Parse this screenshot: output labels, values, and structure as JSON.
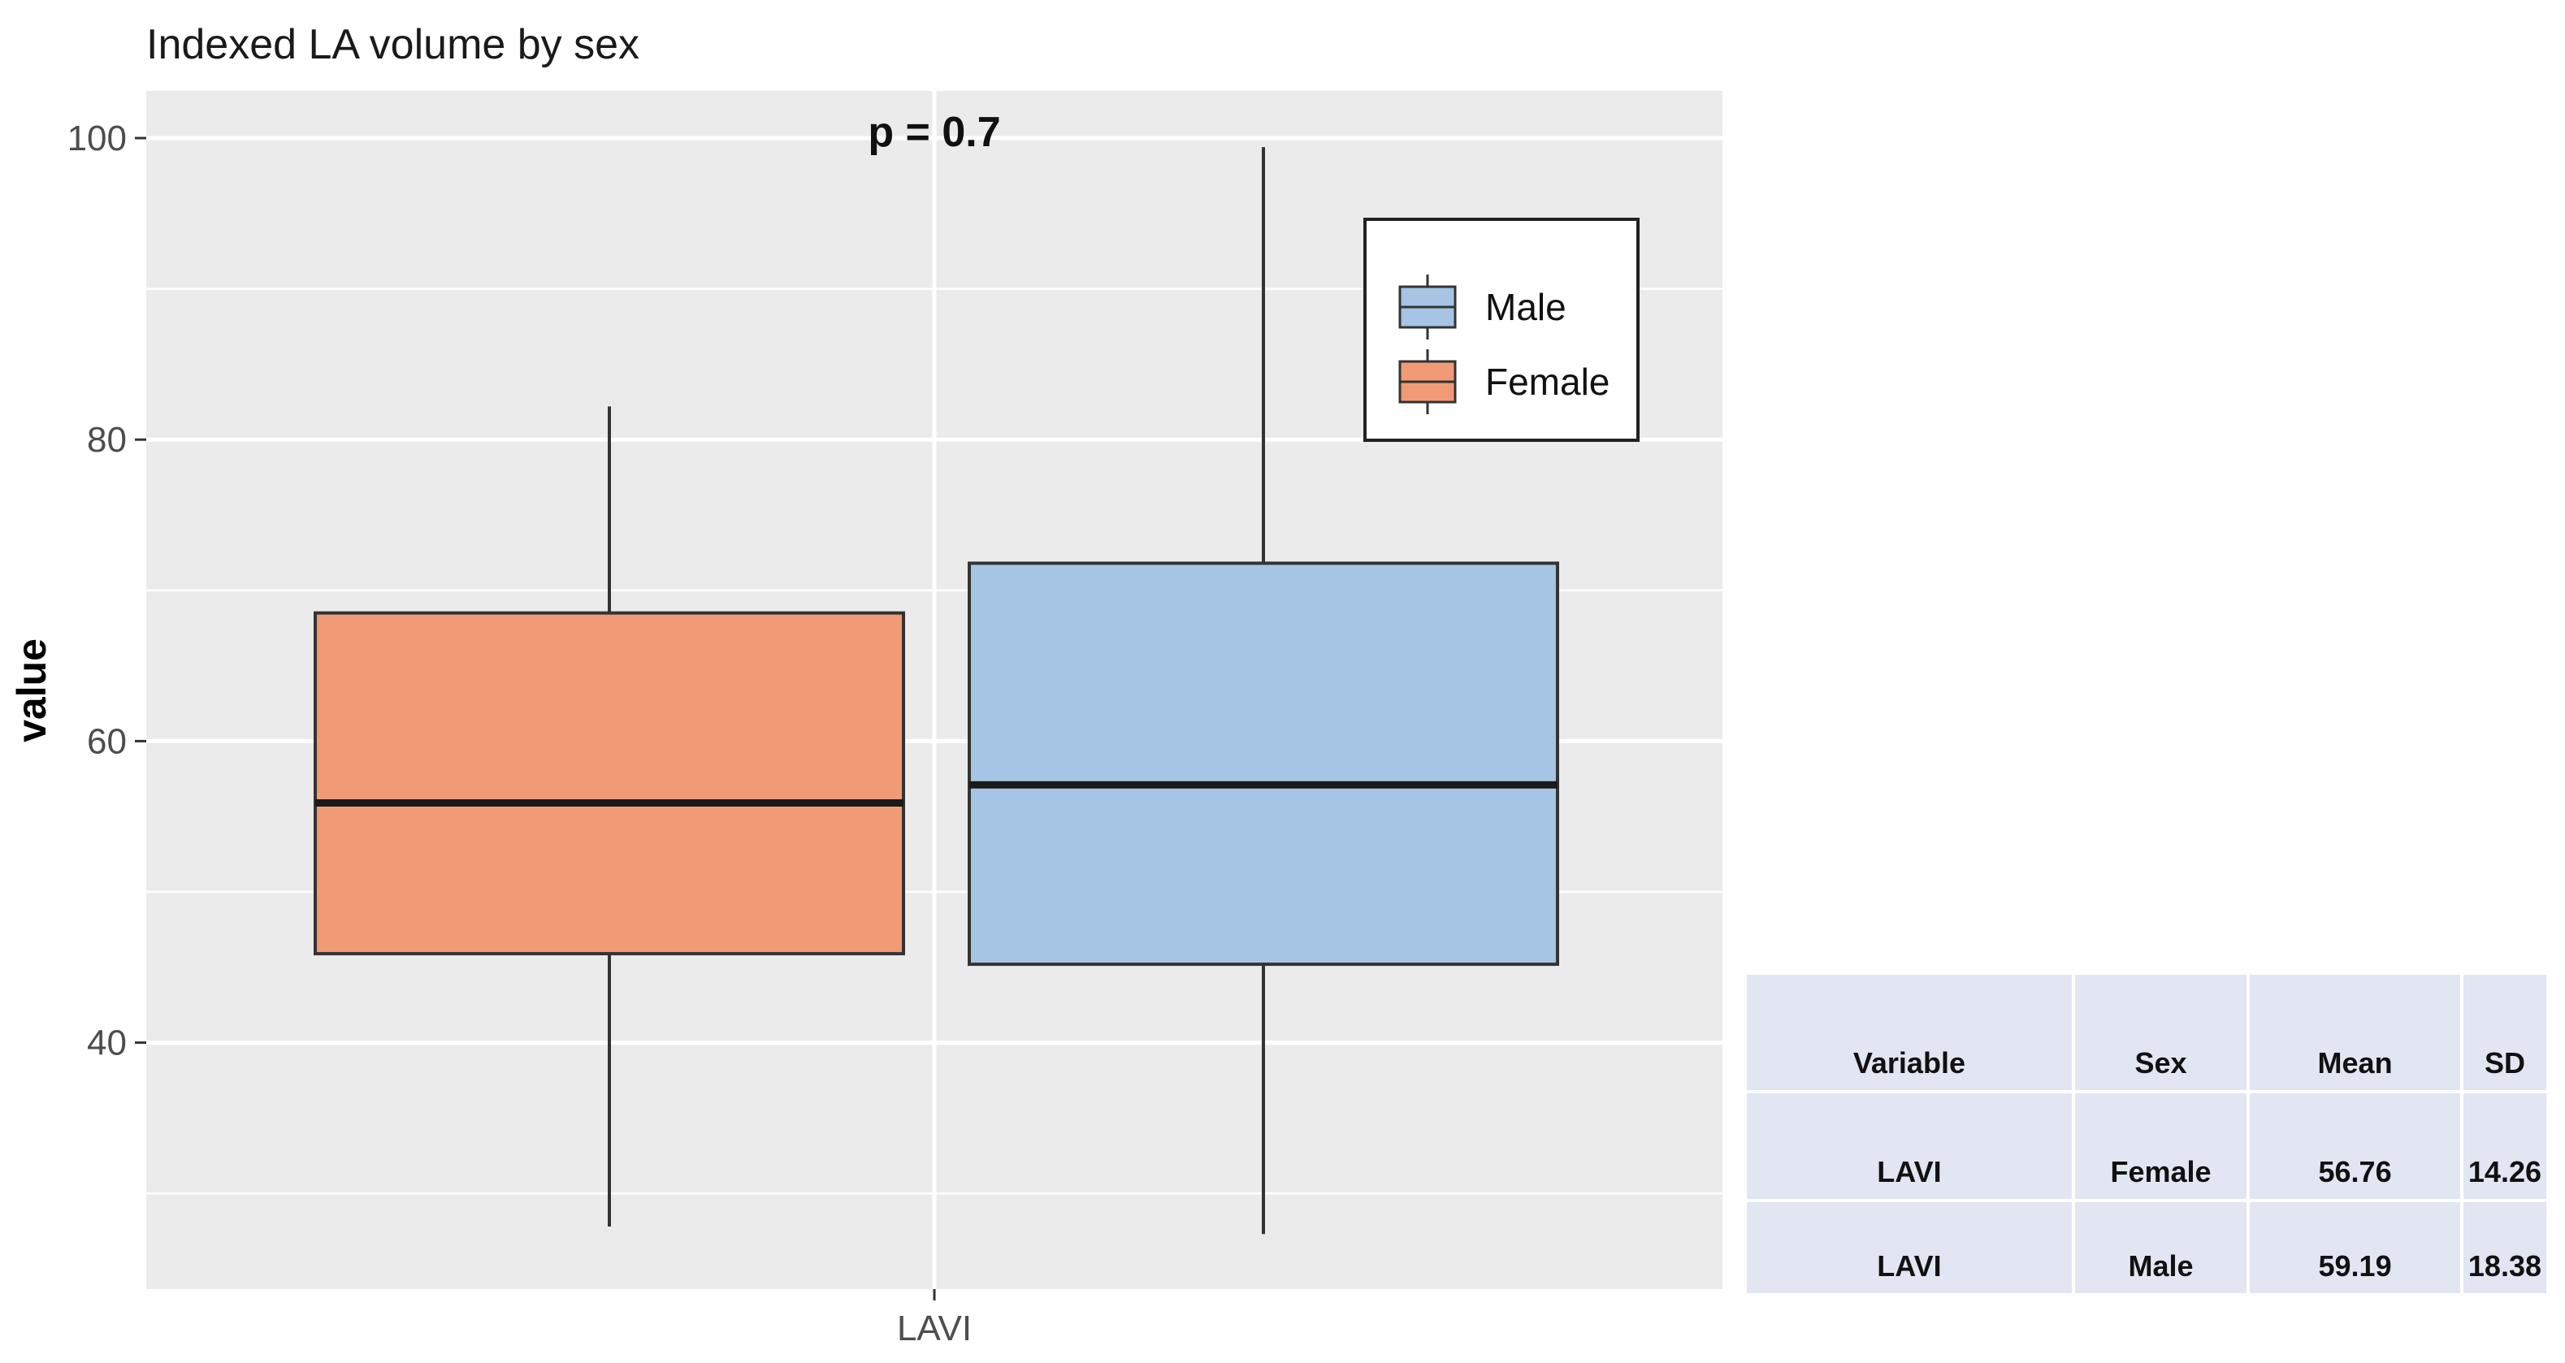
{
  "chart_data": {
    "type": "boxplot",
    "title": "Indexed LA volume by sex",
    "xlabel": "",
    "ylabel": "value",
    "categories": [
      "LAVI"
    ],
    "ylim": [
      24,
      105
    ],
    "yticks": [
      40,
      60,
      80,
      100
    ],
    "grid": true,
    "annotation": "p = 0.7",
    "legend": {
      "placement": "top-right",
      "entries": [
        "Male",
        "Female"
      ]
    },
    "series": [
      {
        "name": "Female",
        "color": "#f09b76",
        "whisker_low": 27.8,
        "q1": 45.9,
        "median": 55.9,
        "q3": 68.5,
        "whisker_high": 82.2
      },
      {
        "name": "Male",
        "color": "#a6c4e4",
        "whisker_low": 27.3,
        "q1": 45.2,
        "median": 57.1,
        "q3": 71.8,
        "whisker_high": 99.4
      }
    ]
  },
  "stats_table": {
    "headers": [
      "Variable",
      "Sex",
      "Mean",
      "SD"
    ],
    "rows": [
      [
        "LAVI",
        "Female",
        "56.76",
        "14.26"
      ],
      [
        "LAVI",
        "Male",
        "59.19",
        "18.38"
      ]
    ]
  }
}
